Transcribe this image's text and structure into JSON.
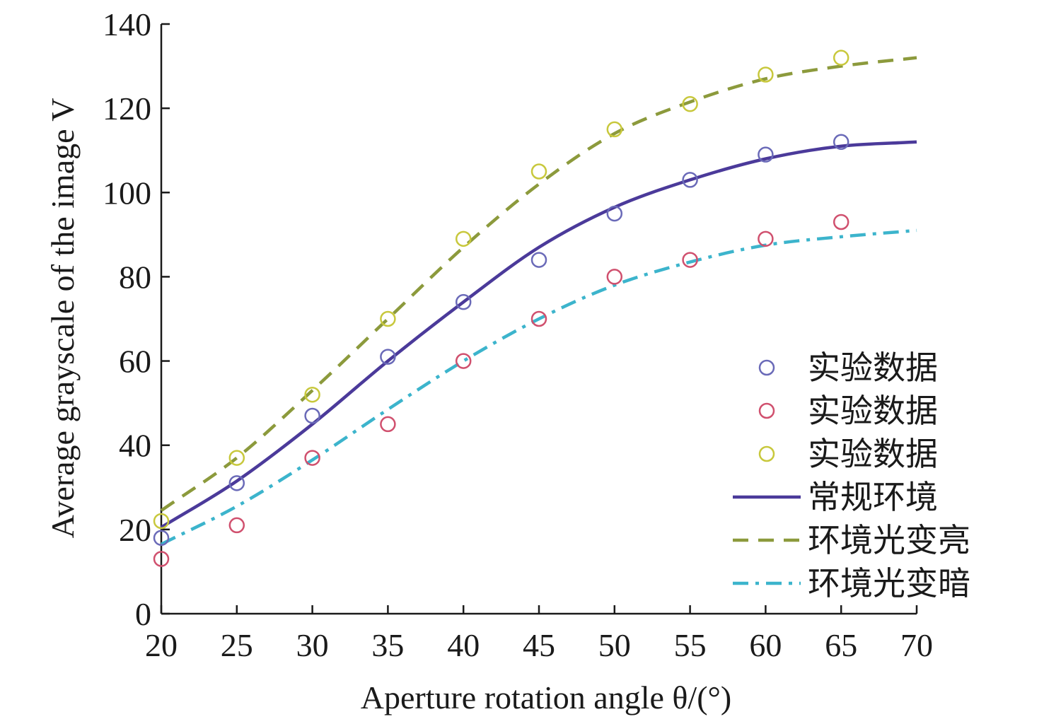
{
  "chart_data": {
    "type": "scatter",
    "xlabel": "Aperture rotation angle θ/(°)",
    "ylabel": "Average grayscale of the image V",
    "xlim": [
      20,
      70
    ],
    "ylim": [
      0,
      140
    ],
    "x_ticks": [
      20,
      25,
      30,
      35,
      40,
      45,
      50,
      55,
      60,
      65,
      70
    ],
    "y_ticks": [
      0,
      20,
      40,
      60,
      80,
      100,
      120,
      140
    ],
    "grid": false,
    "legend_position": "bottom-right",
    "scatter_series": [
      {
        "name": "实验数据",
        "color": "#6a6ab8",
        "x": [
          20,
          25,
          30,
          35,
          40,
          45,
          50,
          55,
          60,
          65
        ],
        "y": [
          18,
          31,
          47,
          61,
          74,
          84,
          95,
          103,
          109,
          112
        ]
      },
      {
        "name": "实验数据",
        "color": "#d0506e",
        "x": [
          20,
          25,
          30,
          35,
          40,
          45,
          50,
          55,
          60,
          65
        ],
        "y": [
          13,
          21,
          37,
          45,
          60,
          70,
          80,
          84,
          89,
          93
        ]
      },
      {
        "name": "实验数据",
        "color": "#c8c83c",
        "x": [
          20,
          25,
          30,
          35,
          40,
          45,
          50,
          55,
          60,
          65
        ],
        "y": [
          22,
          37,
          52,
          70,
          89,
          105,
          115,
          121,
          128,
          132
        ]
      }
    ],
    "line_series": [
      {
        "name": "常规环境",
        "style": "solid",
        "color": "#4b3a9a",
        "x": [
          20,
          25,
          30,
          35,
          40,
          45,
          50,
          55,
          60,
          65,
          70
        ],
        "y": [
          20.5,
          31.5,
          45,
          60,
          74,
          87,
          96.5,
          103,
          108,
          111,
          112
        ]
      },
      {
        "name": "环境光变亮",
        "style": "dashed",
        "color": "#8c9a3c",
        "x": [
          20,
          25,
          30,
          35,
          40,
          45,
          50,
          55,
          60,
          65,
          70
        ],
        "y": [
          24.5,
          37,
          53,
          70,
          87,
          102,
          114,
          121.5,
          127,
          130,
          132
        ]
      },
      {
        "name": "环境光变暗",
        "style": "dash-dot",
        "color": "#3cb4cc",
        "x": [
          20,
          25,
          30,
          35,
          40,
          45,
          50,
          55,
          60,
          65,
          70
        ],
        "y": [
          16.5,
          25.5,
          36.5,
          48.5,
          60,
          70,
          78,
          83.5,
          87.5,
          89.5,
          91
        ]
      }
    ]
  }
}
